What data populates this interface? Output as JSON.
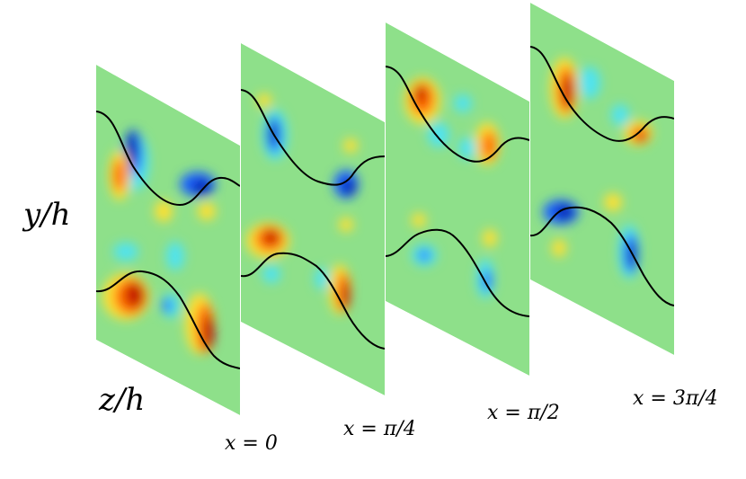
{
  "axes": {
    "vertical_label": "y/h",
    "horizontal_label": "z/h"
  },
  "slices": [
    {
      "label": "x = 0"
    },
    {
      "label": "x = π/4"
    },
    {
      "label": "x = π/2"
    },
    {
      "label": "x = 3π/4"
    }
  ],
  "colors": {
    "background_field": "#8ee08a",
    "positive_strong": "#c00000",
    "positive_mid": "#ff6a00",
    "positive_weak": "#ffe030",
    "negative_strong": "#0018a8",
    "negative_mid": "#1f64ff",
    "negative_weak": "#4fe3f0",
    "interface_line": "#000000"
  },
  "colormap": "jet"
}
